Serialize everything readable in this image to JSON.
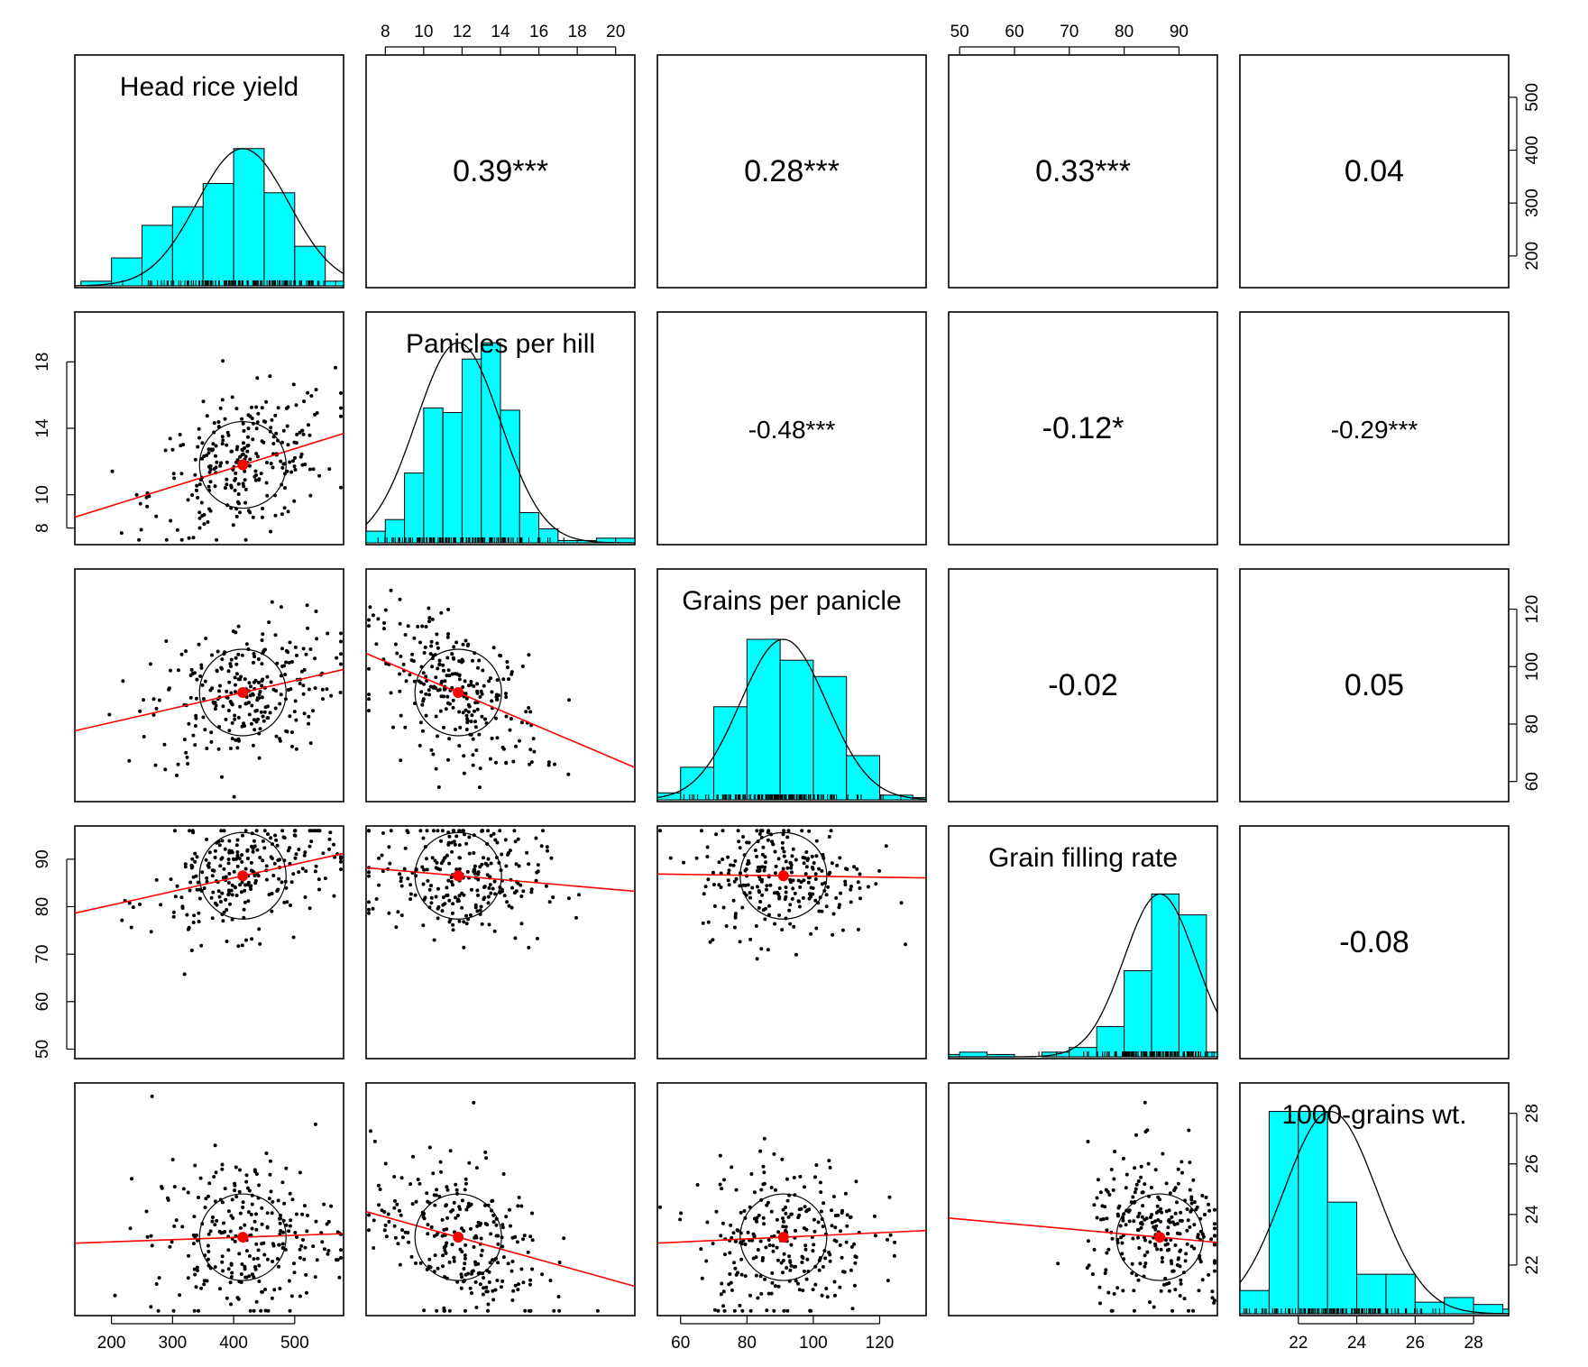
{
  "chart_data": {
    "type": "scatter-matrix",
    "variables": [
      {
        "key": "hry",
        "name": "Head rice yield",
        "range": [
          140,
          580
        ],
        "ticks": [
          200,
          300,
          400,
          500
        ],
        "tick_labels": [
          "200",
          "300",
          "400",
          "500"
        ],
        "mean": 415,
        "sd": 75,
        "ellipse_rx": 75,
        "ellipse_ry": 1.9
      },
      {
        "key": "pph",
        "name": "Panicles per hill",
        "range": [
          7,
          21
        ],
        "ticks": [
          8,
          10,
          12,
          14,
          16,
          18,
          20
        ],
        "tick_labels": [
          "8",
          "10",
          "12",
          "14",
          "16",
          "18",
          "20"
        ],
        "ticks_left": [
          8,
          10,
          14,
          18
        ],
        "tick_labels_left": [
          "8",
          "10",
          "14",
          "18"
        ],
        "mean": 11.8,
        "sd": 2.2
      },
      {
        "key": "gpp",
        "name": "Grains per panicle",
        "range": [
          53,
          134
        ],
        "ticks": [
          60,
          80,
          100,
          120
        ],
        "tick_labels": [
          "60",
          "80",
          "100",
          "120"
        ],
        "mean": 91,
        "sd": 13
      },
      {
        "key": "gfr",
        "name": "Grain filling rate",
        "range": [
          48,
          97
        ],
        "ticks": [
          50,
          60,
          70,
          80,
          90
        ],
        "tick_labels": [
          "50",
          "60",
          "70",
          "80",
          "90"
        ],
        "mean": 86.5,
        "sd": 6.5
      },
      {
        "key": "tgw",
        "name": "1000-grains wt.",
        "range": [
          20,
          29.2
        ],
        "ticks": [
          22,
          24,
          26,
          28
        ],
        "tick_labels": [
          "22",
          "24",
          "26",
          "28"
        ],
        "mean": 23.1,
        "sd": 1.6
      }
    ],
    "correlations": [
      {
        "row": 0,
        "col": 1,
        "label": "0.39***"
      },
      {
        "row": 0,
        "col": 2,
        "label": "0.28***"
      },
      {
        "row": 0,
        "col": 3,
        "label": "0.33***"
      },
      {
        "row": 0,
        "col": 4,
        "label": "0.04"
      },
      {
        "row": 1,
        "col": 2,
        "label": "-0.48***"
      },
      {
        "row": 1,
        "col": 3,
        "label": "-0.12*"
      },
      {
        "row": 1,
        "col": 4,
        "label": "-0.29***"
      },
      {
        "row": 2,
        "col": 3,
        "label": "-0.02"
      },
      {
        "row": 2,
        "col": 4,
        "label": "0.05"
      },
      {
        "row": 3,
        "col": 4,
        "label": "-0.08"
      }
    ],
    "histograms": [
      {
        "var": 0,
        "bins": [
          [
            150,
            200,
            0.02
          ],
          [
            200,
            250,
            0.12
          ],
          [
            250,
            300,
            0.26
          ],
          [
            300,
            350,
            0.34
          ],
          [
            350,
            400,
            0.44
          ],
          [
            400,
            450,
            0.59
          ],
          [
            450,
            500,
            0.4
          ],
          [
            500,
            550,
            0.17
          ],
          [
            550,
            580,
            0.02
          ]
        ]
      },
      {
        "var": 1,
        "bins": [
          [
            7,
            8,
            0.05
          ],
          [
            8,
            9,
            0.1
          ],
          [
            9,
            10,
            0.3
          ],
          [
            10,
            11,
            0.58
          ],
          [
            11,
            12,
            0.56
          ],
          [
            12,
            13,
            0.79
          ],
          [
            13,
            14,
            0.86
          ],
          [
            14,
            15,
            0.57
          ],
          [
            15,
            16,
            0.13
          ],
          [
            16,
            17,
            0.06
          ],
          [
            17,
            18,
            0.01
          ],
          [
            18,
            19,
            0.01
          ],
          [
            19,
            20,
            0.02
          ],
          [
            20,
            21,
            0.02
          ]
        ]
      },
      {
        "var": 2,
        "bins": [
          [
            53,
            60,
            0.03
          ],
          [
            60,
            70,
            0.14
          ],
          [
            70,
            80,
            0.4
          ],
          [
            80,
            90,
            0.69
          ],
          [
            90,
            100,
            0.6
          ],
          [
            100,
            110,
            0.53
          ],
          [
            110,
            120,
            0.19
          ],
          [
            120,
            130,
            0.02
          ],
          [
            130,
            134,
            0.01
          ]
        ]
      },
      {
        "var": 3,
        "bins": [
          [
            48,
            50,
            0.01
          ],
          [
            50,
            55,
            0.02
          ],
          [
            55,
            60,
            0.01
          ],
          [
            60,
            65,
            0.0
          ],
          [
            65,
            70,
            0.02
          ],
          [
            70,
            75,
            0.04
          ],
          [
            75,
            80,
            0.13
          ],
          [
            80,
            85,
            0.37
          ],
          [
            85,
            90,
            0.7
          ],
          [
            90,
            95,
            0.61
          ],
          [
            95,
            97,
            0.02
          ]
        ]
      },
      {
        "var": 4,
        "bins": [
          [
            20,
            21,
            0.1
          ],
          [
            21,
            22,
            0.87
          ],
          [
            22,
            23,
            0.87
          ],
          [
            23,
            24,
            0.48
          ],
          [
            24,
            25,
            0.17
          ],
          [
            25,
            26,
            0.17
          ],
          [
            26,
            27,
            0.05
          ],
          [
            27,
            28,
            0.07
          ],
          [
            28,
            29,
            0.04
          ],
          [
            29,
            29.2,
            0.02
          ]
        ]
      }
    ],
    "grid": false,
    "point_color": "#000000",
    "fit_line_color": "#ff0000",
    "mean_point_color": "#ff0000",
    "histogram_fill": "#00ffff"
  }
}
